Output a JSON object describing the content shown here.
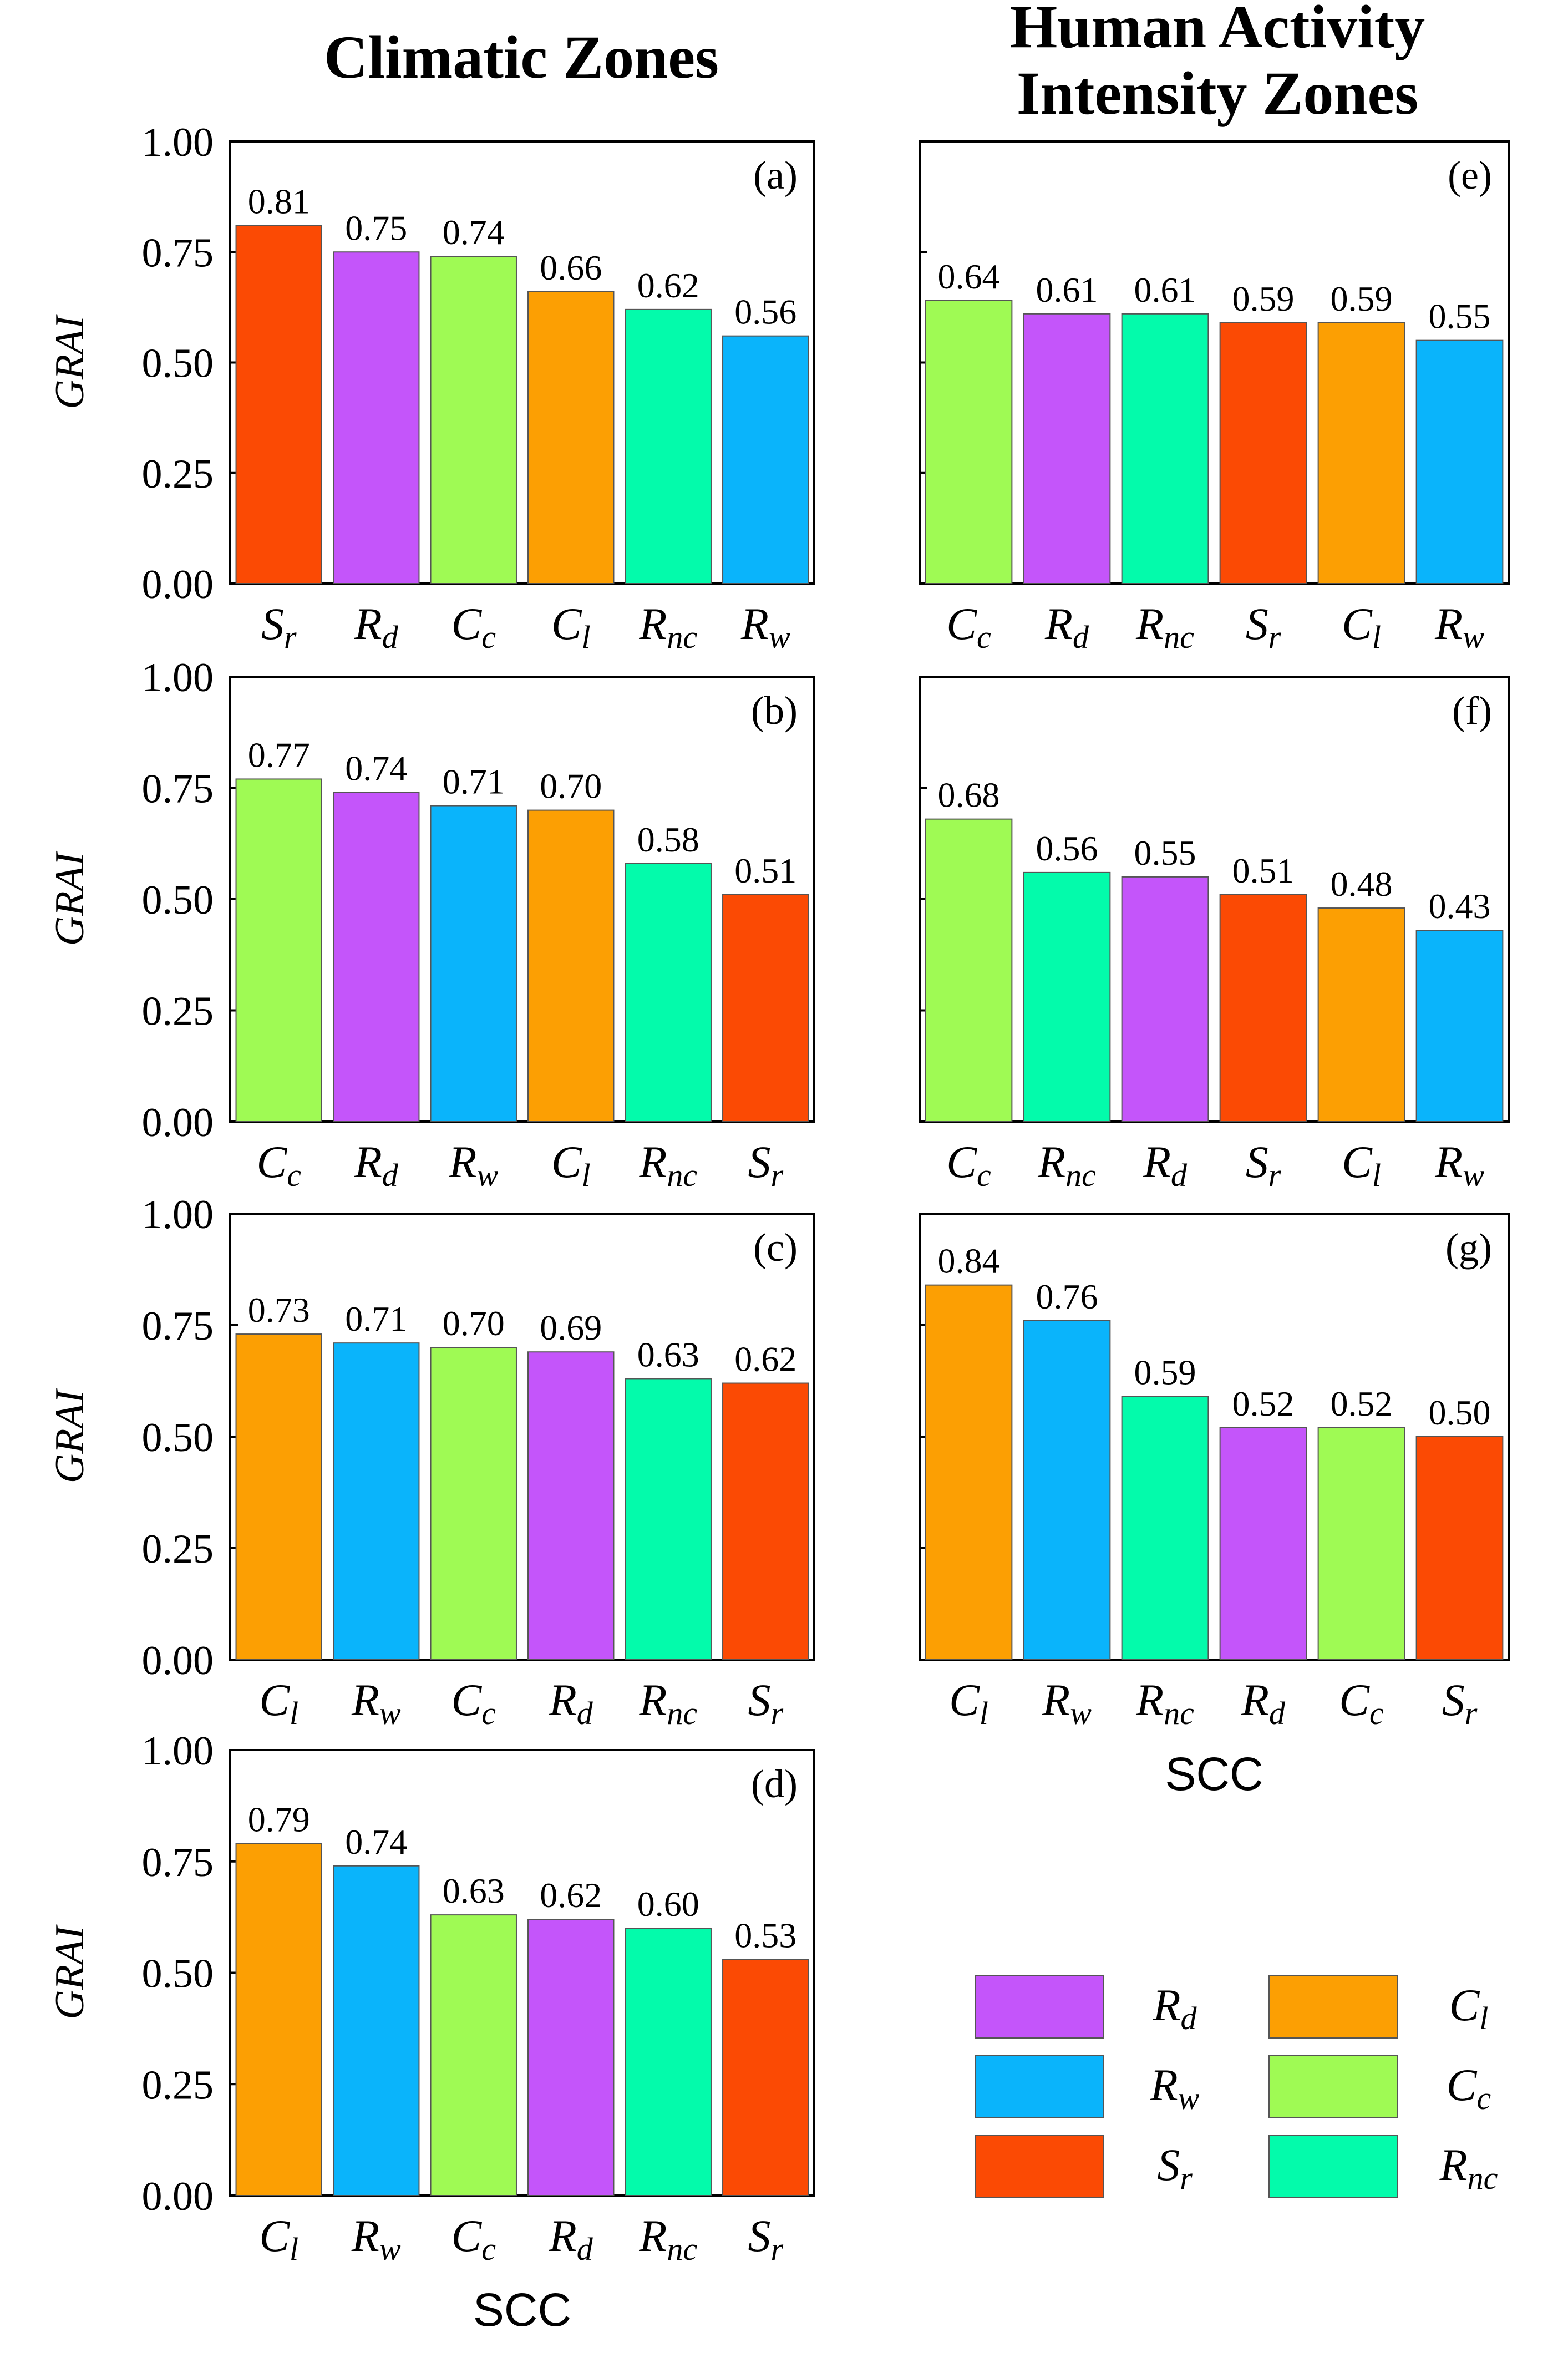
{
  "columns": [
    {
      "title_lines": [
        "Climatic Zones"
      ]
    },
    {
      "title_lines": [
        "Human Activity",
        "Intensity Zones"
      ]
    }
  ],
  "ylabel": "GRAI",
  "xlabel": "SCC",
  "yticks": [
    "0.00",
    "0.25",
    "0.50",
    "0.75",
    "1.00"
  ],
  "classes": {
    "Rd": {
      "base": "R",
      "sub": "d",
      "color": "#c455fa"
    },
    "Rw": {
      "base": "R",
      "sub": "w",
      "color": "#0ab4fb"
    },
    "Sr": {
      "base": "S",
      "sub": "r",
      "color": "#fb4a04"
    },
    "Cl": {
      "base": "C",
      "sub": "l",
      "color": "#fc9f03"
    },
    "Cc": {
      "base": "C",
      "sub": "c",
      "color": "#9ffa54"
    },
    "Rnc": {
      "base": "R",
      "sub": "nc",
      "color": "#03fbab"
    }
  },
  "legend_order": [
    "Rd",
    "Cl",
    "Rw",
    "Cc",
    "Sr",
    "Rnc"
  ],
  "chart_data": [
    {
      "panel": "(a)",
      "type": "bar",
      "column": 0,
      "categories": [
        "Sr",
        "Rd",
        "Cc",
        "Cl",
        "Rnc",
        "Rw"
      ],
      "values": [
        0.81,
        0.75,
        0.74,
        0.66,
        0.62,
        0.56
      ],
      "labels": [
        "0.81",
        "0.75",
        "0.74",
        "0.66",
        "0.62",
        "0.56"
      ],
      "ylabel": "GRAI",
      "xlabel": "",
      "ylim": [
        0,
        1
      ],
      "show_yticklabels": true
    },
    {
      "panel": "(b)",
      "type": "bar",
      "column": 0,
      "categories": [
        "Cc",
        "Rd",
        "Rw",
        "Cl",
        "Rnc",
        "Sr"
      ],
      "values": [
        0.77,
        0.74,
        0.71,
        0.7,
        0.58,
        0.51
      ],
      "labels": [
        "0.77",
        "0.74",
        "0.71",
        "0.70",
        "0.58",
        "0.51"
      ],
      "ylabel": "GRAI",
      "xlabel": "",
      "ylim": [
        0,
        1
      ],
      "show_yticklabels": true
    },
    {
      "panel": "(c)",
      "type": "bar",
      "column": 0,
      "categories": [
        "Cl",
        "Rw",
        "Cc",
        "Rd",
        "Rnc",
        "Sr"
      ],
      "values": [
        0.73,
        0.71,
        0.7,
        0.69,
        0.63,
        0.62
      ],
      "labels": [
        "0.73",
        "0.71",
        "0.70",
        "0.69",
        "0.63",
        "0.62"
      ],
      "ylabel": "GRAI",
      "xlabel": "",
      "ylim": [
        0,
        1
      ],
      "show_yticklabels": true
    },
    {
      "panel": "(d)",
      "type": "bar",
      "column": 0,
      "categories": [
        "Cl",
        "Rw",
        "Cc",
        "Rd",
        "Rnc",
        "Sr"
      ],
      "values": [
        0.79,
        0.74,
        0.63,
        0.62,
        0.6,
        0.53
      ],
      "labels": [
        "0.79",
        "0.74",
        "0.63",
        "0.62",
        "0.60",
        "0.53"
      ],
      "ylabel": "GRAI",
      "xlabel": "SCC",
      "ylim": [
        0,
        1
      ],
      "show_yticklabels": true
    },
    {
      "panel": "(e)",
      "type": "bar",
      "column": 1,
      "categories": [
        "Cc",
        "Rd",
        "Rnc",
        "Sr",
        "Cl",
        "Rw"
      ],
      "values": [
        0.64,
        0.61,
        0.61,
        0.59,
        0.59,
        0.55
      ],
      "labels": [
        "0.64",
        "0.61",
        "0.61",
        "0.59",
        "0.59",
        "0.55"
      ],
      "ylabel": "",
      "xlabel": "",
      "ylim": [
        0,
        1
      ],
      "show_yticklabels": false
    },
    {
      "panel": "(f)",
      "type": "bar",
      "column": 1,
      "categories": [
        "Cc",
        "Rnc",
        "Rd",
        "Sr",
        "Cl",
        "Rw"
      ],
      "values": [
        0.68,
        0.56,
        0.55,
        0.51,
        0.48,
        0.43
      ],
      "labels": [
        "0.68",
        "0.56",
        "0.55",
        "0.51",
        "0.48",
        "0.43"
      ],
      "ylabel": "",
      "xlabel": "",
      "ylim": [
        0,
        1
      ],
      "show_yticklabels": false
    },
    {
      "panel": "(g)",
      "type": "bar",
      "column": 1,
      "categories": [
        "Cl",
        "Rw",
        "Rnc",
        "Rd",
        "Cc",
        "Sr"
      ],
      "values": [
        0.84,
        0.76,
        0.59,
        0.52,
        0.52,
        0.5
      ],
      "labels": [
        "0.84",
        "0.76",
        "0.59",
        "0.52",
        "0.52",
        "0.50"
      ],
      "ylabel": "",
      "xlabel": "SCC",
      "ylim": [
        0,
        1
      ],
      "show_yticklabels": false
    }
  ]
}
